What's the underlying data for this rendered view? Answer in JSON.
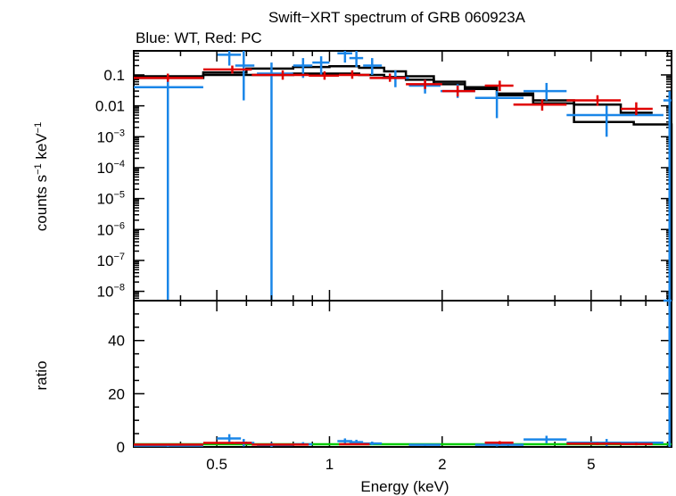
{
  "chart_data": {
    "type": "scatter",
    "title": "Swift−XRT spectrum of GRB 060923A",
    "subtitle": "Blue: WT, Red: PC",
    "xlabel": "Energy (keV)",
    "xscale": "log",
    "xlim": [
      0.3,
      8.2
    ],
    "x_ticks": [
      {
        "value": 0.5,
        "label": "0.5"
      },
      {
        "value": 1,
        "label": "1"
      },
      {
        "value": 2,
        "label": "2"
      },
      {
        "value": 5,
        "label": "5"
      }
    ],
    "top_panel": {
      "ylabel_main": "counts s",
      "ylabel_sup1": "−1",
      "ylabel_mid": " keV",
      "ylabel_sup2": "−1",
      "yscale": "log",
      "ylim": [
        5e-09,
        0.6
      ],
      "y_ticks": [
        {
          "value": 0.1,
          "label": "0.1"
        },
        {
          "value": 0.01,
          "label": "0.01"
        },
        {
          "value": 0.001,
          "base": "10",
          "exp": "−3"
        },
        {
          "value": 0.0001,
          "base": "10",
          "exp": "−4"
        },
        {
          "value": 1e-05,
          "base": "10",
          "exp": "−5"
        },
        {
          "value": 1e-06,
          "base": "10",
          "exp": "−6"
        },
        {
          "value": 1e-07,
          "base": "10",
          "exp": "−7"
        },
        {
          "value": 1e-08,
          "base": "10",
          "exp": "−8"
        }
      ],
      "series": [
        {
          "color": "#1a86e8",
          "points": [
            {
              "x": 0.37,
              "xlo": 0.3,
              "xhi": 0.46,
              "y": 0.04,
              "ylo": 1e-09,
              "yhi": 0.1
            },
            {
              "x": 0.54,
              "xlo": 0.5,
              "xhi": 0.58,
              "y": 0.45,
              "ylo": 0.2,
              "yhi": 0.7
            },
            {
              "x": 0.59,
              "xlo": 0.56,
              "xhi": 0.63,
              "y": 0.2,
              "ylo": 0.015,
              "yhi": 0.6
            },
            {
              "x": 0.7,
              "xlo": 0.64,
              "xhi": 0.8,
              "y": 0.11,
              "ylo": 1e-09,
              "yhi": 0.25
            },
            {
              "x": 0.85,
              "xlo": 0.8,
              "xhi": 0.9,
              "y": 0.2,
              "ylo": 0.08,
              "yhi": 0.35
            },
            {
              "x": 0.95,
              "xlo": 0.9,
              "xhi": 1.0,
              "y": 0.25,
              "ylo": 0.1,
              "yhi": 0.4
            },
            {
              "x": 1.1,
              "xlo": 1.05,
              "xhi": 1.15,
              "y": 0.5,
              "ylo": 0.25,
              "yhi": 0.7
            },
            {
              "x": 1.18,
              "xlo": 1.13,
              "xhi": 1.23,
              "y": 0.35,
              "ylo": 0.18,
              "yhi": 0.6
            },
            {
              "x": 1.3,
              "xlo": 1.23,
              "xhi": 1.38,
              "y": 0.2,
              "ylo": 0.1,
              "yhi": 0.35
            },
            {
              "x": 1.5,
              "xlo": 1.38,
              "xhi": 1.63,
              "y": 0.08,
              "ylo": 0.04,
              "yhi": 0.14
            },
            {
              "x": 1.8,
              "xlo": 1.63,
              "xhi": 1.98,
              "y": 0.045,
              "ylo": 0.025,
              "yhi": 0.07
            },
            {
              "x": 2.2,
              "xlo": 1.98,
              "xhi": 2.45,
              "y": 0.03,
              "ylo": 0.018,
              "yhi": 0.05
            },
            {
              "x": 2.8,
              "xlo": 2.45,
              "xhi": 3.3,
              "y": 0.018,
              "ylo": 0.004,
              "yhi": 0.03
            },
            {
              "x": 3.8,
              "xlo": 3.3,
              "xhi": 4.3,
              "y": 0.03,
              "ylo": 0.015,
              "yhi": 0.055
            },
            {
              "x": 5.5,
              "xlo": 4.3,
              "xhi": 7.8,
              "y": 0.005,
              "ylo": 0.001,
              "yhi": 0.01
            },
            {
              "x": 8.1,
              "xlo": 7.8,
              "xhi": 8.2,
              "y": 0.015,
              "ylo": 1e-09,
              "yhi": 0.03
            }
          ]
        },
        {
          "color": "#e00000",
          "points": [
            {
              "x": 0.37,
              "xlo": 0.3,
              "xhi": 0.46,
              "y": 0.08,
              "ylo": 0.06,
              "yhi": 0.11
            },
            {
              "x": 0.55,
              "xlo": 0.46,
              "xhi": 0.62,
              "y": 0.15,
              "ylo": 0.11,
              "yhi": 0.2
            },
            {
              "x": 0.75,
              "xlo": 0.62,
              "xhi": 0.88,
              "y": 0.1,
              "ylo": 0.07,
              "yhi": 0.14
            },
            {
              "x": 0.97,
              "xlo": 0.88,
              "xhi": 1.06,
              "y": 0.095,
              "ylo": 0.07,
              "yhi": 0.13
            },
            {
              "x": 1.15,
              "xlo": 1.06,
              "xhi": 1.28,
              "y": 0.1,
              "ylo": 0.075,
              "yhi": 0.14
            },
            {
              "x": 1.45,
              "xlo": 1.28,
              "xhi": 1.6,
              "y": 0.08,
              "ylo": 0.06,
              "yhi": 0.11
            },
            {
              "x": 1.8,
              "xlo": 1.6,
              "xhi": 2.0,
              "y": 0.05,
              "ylo": 0.035,
              "yhi": 0.07
            },
            {
              "x": 2.2,
              "xlo": 2.0,
              "xhi": 2.45,
              "y": 0.03,
              "ylo": 0.02,
              "yhi": 0.045
            },
            {
              "x": 2.85,
              "xlo": 2.6,
              "xhi": 3.1,
              "y": 0.045,
              "ylo": 0.03,
              "yhi": 0.065
            },
            {
              "x": 3.7,
              "xlo": 3.1,
              "xhi": 4.3,
              "y": 0.011,
              "ylo": 0.007,
              "yhi": 0.016
            },
            {
              "x": 5.2,
              "xlo": 4.3,
              "xhi": 6.0,
              "y": 0.015,
              "ylo": 0.01,
              "yhi": 0.022
            },
            {
              "x": 6.6,
              "xlo": 6.0,
              "xhi": 7.3,
              "y": 0.008,
              "ylo": 0.005,
              "yhi": 0.013
            }
          ]
        }
      ],
      "models": [
        {
          "color": "#000000",
          "x": [
            0.3,
            0.46,
            0.6,
            0.8,
            1.0,
            1.2,
            1.4,
            1.6,
            1.9,
            2.3,
            2.8,
            3.5,
            4.5,
            6.5,
            8.2
          ],
          "y": [
            0.08,
            0.12,
            0.16,
            0.18,
            0.19,
            0.17,
            0.13,
            0.09,
            0.06,
            0.04,
            0.025,
            0.012,
            0.003,
            0.0025,
            1e-09
          ]
        },
        {
          "color": "#000000",
          "x": [
            0.3,
            0.46,
            0.6,
            0.8,
            1.0,
            1.2,
            1.4,
            1.6,
            1.9,
            2.3,
            2.8,
            3.5,
            4.5,
            6.0,
            7.3
          ],
          "y": [
            0.09,
            0.1,
            0.1,
            0.11,
            0.11,
            0.1,
            0.085,
            0.07,
            0.05,
            0.035,
            0.022,
            0.015,
            0.011,
            0.006,
            0.006
          ]
        }
      ]
    },
    "bottom_panel": {
      "ylabel": "ratio",
      "ylim": [
        0,
        55
      ],
      "y_ticks": [
        {
          "value": 0,
          "label": "0"
        },
        {
          "value": 20,
          "label": "20"
        },
        {
          "value": 40,
          "label": "40"
        }
      ],
      "reference_line": {
        "y": 1,
        "color": "#00cc00"
      },
      "series": [
        {
          "color": "#1a86e8",
          "points": [
            {
              "x": 0.37,
              "xlo": 0.3,
              "xhi": 0.46,
              "y": 0.5,
              "ylo": 0,
              "yhi": 1.2
            },
            {
              "x": 0.54,
              "xlo": 0.5,
              "xhi": 0.58,
              "y": 3.2,
              "ylo": 1.6,
              "yhi": 4.8
            },
            {
              "x": 0.59,
              "xlo": 0.56,
              "xhi": 0.63,
              "y": 1.5,
              "ylo": 0.2,
              "yhi": 3
            },
            {
              "x": 0.7,
              "xlo": 0.64,
              "xhi": 0.8,
              "y": 0.7,
              "ylo": 0,
              "yhi": 1.6
            },
            {
              "x": 0.85,
              "xlo": 0.8,
              "xhi": 0.9,
              "y": 1.0,
              "ylo": 0.5,
              "yhi": 1.8
            },
            {
              "x": 1.1,
              "xlo": 1.05,
              "xhi": 1.15,
              "y": 2.2,
              "ylo": 1.2,
              "yhi": 3.2
            },
            {
              "x": 1.18,
              "xlo": 1.13,
              "xhi": 1.23,
              "y": 1.8,
              "ylo": 1.0,
              "yhi": 2.7
            },
            {
              "x": 1.3,
              "xlo": 1.23,
              "xhi": 1.38,
              "y": 1.3,
              "ylo": 0.7,
              "yhi": 2.0
            },
            {
              "x": 1.8,
              "xlo": 1.63,
              "xhi": 1.98,
              "y": 0.8,
              "ylo": 0.4,
              "yhi": 1.2
            },
            {
              "x": 2.8,
              "xlo": 2.45,
              "xhi": 3.3,
              "y": 0.8,
              "ylo": 0.2,
              "yhi": 1.4
            },
            {
              "x": 3.8,
              "xlo": 3.3,
              "xhi": 4.3,
              "y": 2.8,
              "ylo": 1.4,
              "yhi": 4.2
            },
            {
              "x": 5.5,
              "xlo": 4.3,
              "xhi": 7.8,
              "y": 1.6,
              "ylo": 0.3,
              "yhi": 3
            },
            {
              "x": 8.1,
              "xlo": 7.8,
              "xhi": 8.2,
              "y": 55,
              "ylo": 0,
              "yhi": 56
            }
          ]
        },
        {
          "color": "#e00000",
          "points": [
            {
              "x": 0.37,
              "xlo": 0.3,
              "xhi": 0.46,
              "y": 0.9,
              "ylo": 0.6,
              "yhi": 1.2
            },
            {
              "x": 0.55,
              "xlo": 0.46,
              "xhi": 0.62,
              "y": 1.5,
              "ylo": 1.1,
              "yhi": 1.9
            },
            {
              "x": 0.75,
              "xlo": 0.62,
              "xhi": 0.88,
              "y": 0.9,
              "ylo": 0.6,
              "yhi": 1.2
            },
            {
              "x": 1.15,
              "xlo": 1.06,
              "xhi": 1.28,
              "y": 1.0,
              "ylo": 0.7,
              "yhi": 1.3
            },
            {
              "x": 2.85,
              "xlo": 2.6,
              "xhi": 3.1,
              "y": 1.6,
              "ylo": 1.0,
              "yhi": 2.2
            },
            {
              "x": 5.2,
              "xlo": 4.3,
              "xhi": 6.0,
              "y": 1.2,
              "ylo": 0.7,
              "yhi": 1.7
            },
            {
              "x": 6.6,
              "xlo": 6.0,
              "xhi": 7.3,
              "y": 1.1,
              "ylo": 0.6,
              "yhi": 1.6
            }
          ]
        }
      ]
    }
  }
}
